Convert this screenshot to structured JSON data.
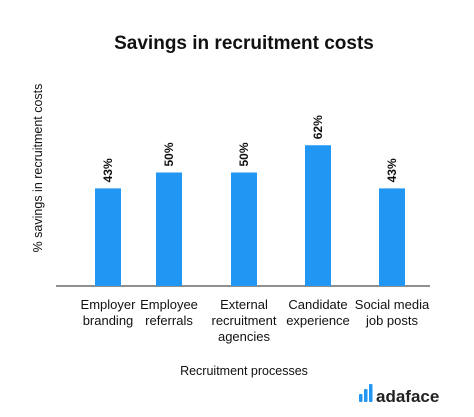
{
  "chart_data": {
    "type": "bar",
    "title": "Savings in recruitment costs",
    "xlabel": "Recruitment processes",
    "ylabel": "% savings in recruitment costs",
    "categories": [
      [
        "Employer",
        "branding"
      ],
      [
        "Employee",
        "referrals"
      ],
      [
        "External",
        "recruitment",
        "agencies"
      ],
      [
        "Candidate",
        "experience"
      ],
      [
        "Social media",
        "job posts"
      ]
    ],
    "values": [
      43,
      50,
      50,
      62,
      43
    ],
    "data_labels": [
      "43%",
      "50%",
      "50%",
      "62%",
      "43%"
    ],
    "ylim": [
      0,
      100
    ],
    "grid": false,
    "bar_color": "#2196f3"
  },
  "brand": {
    "name": "adaface",
    "icon": "bar-logo-icon",
    "color": "#2196f3"
  }
}
